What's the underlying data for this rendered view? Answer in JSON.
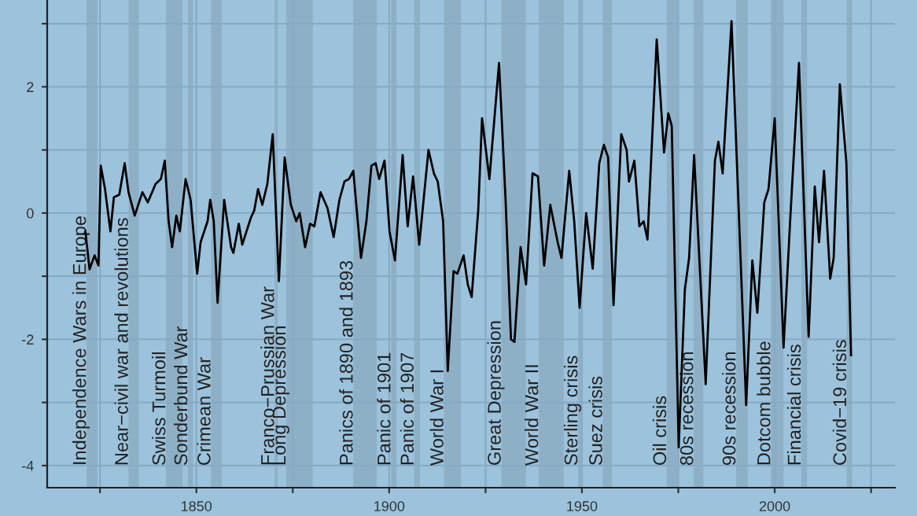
{
  "chart_data": {
    "type": "line",
    "x": [
      1821.2,
      1822.3,
      1823.6,
      1824.6,
      1825.2,
      1826.3,
      1827.7,
      1828.6,
      1830.0,
      1831.4,
      1832.4,
      1834.0,
      1836.0,
      1837.4,
      1839.4,
      1840.8,
      1841.8,
      1842.8,
      1843.7,
      1844.8,
      1845.7,
      1847.2,
      1848.5,
      1850.2,
      1851.1,
      1852.9,
      1853.6,
      1854.5,
      1855.5,
      1857.2,
      1859.0,
      1859.6,
      1861.0,
      1861.9,
      1864.1,
      1865.0,
      1866.0,
      1867.1,
      1868.4,
      1869.8,
      1871.4,
      1872.9,
      1874.5,
      1875.9,
      1876.8,
      1878.2,
      1879.5,
      1880.6,
      1882.2,
      1884.0,
      1885.6,
      1887.1,
      1888.4,
      1889.6,
      1890.7,
      1892.7,
      1894.1,
      1895.4,
      1896.5,
      1897.4,
      1898.8,
      1900.1,
      1901.5,
      1903.5,
      1904.8,
      1906.2,
      1907.8,
      1910.2,
      1911.6,
      1912.6,
      1914.0,
      1915.2,
      1916.7,
      1917.7,
      1919.3,
      1920.4,
      1921.4,
      1923.1,
      1924.1,
      1926.0,
      1928.5,
      1930.2,
      1931.6,
      1932.5,
      1934.1,
      1935.5,
      1937.2,
      1938.6,
      1940.2,
      1941.8,
      1943.7,
      1944.7,
      1946.7,
      1948.0,
      1949.4,
      1951.1,
      1952.8,
      1954.5,
      1955.7,
      1956.8,
      1958.2,
      1960.2,
      1961.6,
      1962.2,
      1963.6,
      1964.9,
      1966.0,
      1967.0,
      1969.4,
      1971.3,
      1972.4,
      1973.3,
      1975.1,
      1976.7,
      1977.8,
      1979.1,
      1982.1,
      1984.5,
      1985.4,
      1986.5,
      1988.8,
      1992.6,
      1994.2,
      1995.5,
      1997.3,
      1998.4,
      2000.0,
      2002.3,
      2004.0,
      2006.3,
      2008.8,
      2010.4,
      2011.5,
      2012.8,
      2014.4,
      2015.3,
      2016.9,
      2018.6,
      2019.8
    ],
    "series": [
      {
        "color": "#000000",
        "values": [
          -0.29,
          -0.89,
          -0.67,
          -0.83,
          0.75,
          0.38,
          -0.29,
          0.25,
          0.29,
          0.79,
          0.33,
          -0.04,
          0.33,
          0.17,
          0.46,
          0.54,
          0.83,
          -0.13,
          -0.54,
          -0.04,
          -0.29,
          0.54,
          0.21,
          -0.96,
          -0.46,
          -0.13,
          0.21,
          -0.13,
          -1.42,
          0.21,
          -0.54,
          -0.63,
          -0.17,
          -0.5,
          -0.08,
          0.04,
          0.38,
          0.13,
          0.46,
          1.25,
          -1.08,
          0.88,
          0.13,
          -0.13,
          0.0,
          -0.54,
          -0.17,
          -0.21,
          0.33,
          0.08,
          -0.38,
          0.21,
          0.5,
          0.54,
          0.67,
          -0.71,
          -0.13,
          0.75,
          0.79,
          0.54,
          0.83,
          -0.29,
          -0.75,
          0.92,
          -0.21,
          0.58,
          -0.5,
          1.0,
          0.63,
          0.5,
          -0.13,
          -2.5,
          -0.92,
          -0.96,
          -0.67,
          -1.13,
          -1.33,
          0.04,
          1.5,
          0.54,
          2.38,
          0.21,
          -2.0,
          -2.04,
          -0.54,
          -1.13,
          0.63,
          0.58,
          -0.83,
          0.13,
          -0.46,
          -0.71,
          0.67,
          -0.13,
          -1.5,
          0.0,
          -0.88,
          0.79,
          1.08,
          0.88,
          -1.46,
          1.25,
          1.0,
          0.5,
          0.83,
          -0.21,
          -0.13,
          -0.42,
          2.75,
          0.96,
          1.58,
          1.38,
          -3.71,
          -1.21,
          -0.71,
          0.92,
          -2.71,
          0.83,
          1.13,
          0.63,
          3.04,
          -3.04,
          -0.75,
          -1.58,
          0.17,
          0.38,
          1.5,
          -2.13,
          -0.13,
          2.38,
          -1.96,
          0.42,
          -0.46,
          0.67,
          -1.04,
          -0.71,
          2.04,
          0.79,
          -2.25
        ]
      }
    ],
    "xlim": [
      1811.3,
      2031.2
    ],
    "xticks": [
      {
        "value": 1825,
        "label": null
      },
      1850,
      {
        "value": 1875,
        "label": null
      },
      1900,
      {
        "value": 1925,
        "label": null
      },
      1950,
      {
        "value": 1975,
        "label": null
      },
      2000,
      {
        "value": 2025,
        "label": null
      }
    ],
    "ylim": [
      -4.35,
      3.375
    ],
    "yticks": [
      -4,
      {
        "value": -3,
        "label": null
      },
      -2,
      {
        "value": -1,
        "label": null
      },
      0,
      {
        "value": 1,
        "label": null
      },
      2,
      {
        "value": 3,
        "label": null
      }
    ],
    "grid": true,
    "marker": "none",
    "line_style": "solid",
    "bands": [
      {
        "axis": "x",
        "from": 1821.5,
        "to": 1824.3,
        "label": "Independence Wars in Europe",
        "color": "#89a9bf"
      },
      {
        "axis": "x",
        "from": 1832.4,
        "to": 1835.1,
        "label": "Near−civil war and revolutions",
        "color": "#89a9bf"
      },
      {
        "axis": "x",
        "from": 1842.1,
        "to": 1846.4,
        "label": "Swiss Turmoil",
        "color": "#89a9bf"
      },
      {
        "axis": "x",
        "from": 1847.8,
        "to": 1849.1,
        "label": "Sonderbund War",
        "color": "#89a9bf"
      },
      {
        "axis": "x",
        "from": 1853.8,
        "to": 1856.6,
        "label": "Crimean War",
        "color": "#89a9bf"
      },
      {
        "axis": "x",
        "from": 1870.3,
        "to": 1871.1,
        "label": "Franco−Prussian War",
        "color": "#89a9bf"
      },
      {
        "axis": "x",
        "from": 1873.3,
        "to": 1880.2,
        "label": "Long Depression",
        "color": "#89a9bf"
      },
      {
        "axis": "x",
        "from": 1890.7,
        "to": 1896.8,
        "label": "Panics of 1890 and 1893",
        "color": "#89a9bf"
      },
      {
        "axis": "x",
        "from": 1900.5,
        "to": 1901.9,
        "label": "Panic of 1901",
        "color": "#89a9bf"
      },
      {
        "axis": "x",
        "from": 1906.5,
        "to": 1908.0,
        "label": "Panic of 1907",
        "color": "#89a9bf"
      },
      {
        "axis": "x",
        "from": 1914.2,
        "to": 1918.6,
        "label": "World War I",
        "color": "#89a9bf"
      },
      {
        "axis": "x",
        "from": 1929.1,
        "to": 1935.5,
        "label": "Great Depression",
        "color": "#89a9bf"
      },
      {
        "axis": "x",
        "from": 1938.8,
        "to": 1945.3,
        "label": "World War II",
        "color": "#89a9bf"
      },
      {
        "axis": "x",
        "from": 1949.0,
        "to": 1950.1,
        "label": "Sterling crisis",
        "color": "#89a9bf"
      },
      {
        "axis": "x",
        "from": 1955.4,
        "to": 1957.8,
        "label": "Suez crisis",
        "color": "#89a9bf"
      },
      {
        "axis": "x",
        "from": 1972.0,
        "to": 1975.0,
        "label": "Oil crisis",
        "color": "#89a9bf"
      },
      {
        "axis": "x",
        "from": 1979.0,
        "to": 1981.5,
        "label": "80s recession",
        "color": "#89a9bf"
      },
      {
        "axis": "x",
        "from": 1990.0,
        "to": 1993.0,
        "label": "90s recession",
        "color": "#89a9bf"
      },
      {
        "axis": "x",
        "from": 1999.0,
        "to": 2002.3,
        "label": "Dotcom bubble",
        "color": "#89a9bf"
      },
      {
        "axis": "x",
        "from": 2006.9,
        "to": 2008.4,
        "label": "Financial crisis",
        "color": "#89a9bf"
      },
      {
        "axis": "x",
        "from": 2018.7,
        "to": 2020.1,
        "label": "Covid−19 crisis",
        "color": "#89a9bf"
      }
    ]
  }
}
